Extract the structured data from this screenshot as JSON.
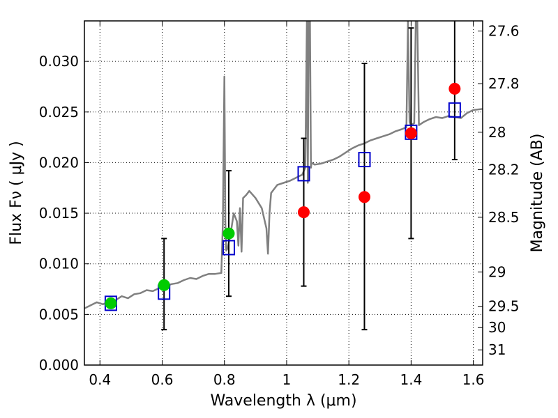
{
  "chart_data": {
    "type": "scatter",
    "xlabel": "Wavelength  λ (μm)",
    "ylabel": "Flux  Fν  ( μJy )",
    "y2label": "Magnitude (AB)",
    "xlim": [
      0.35,
      1.63
    ],
    "ylim": [
      0.0,
      0.034
    ],
    "grid": true,
    "x_ticks": [
      0.4,
      0.6,
      0.8,
      1.0,
      1.2,
      1.4,
      1.6
    ],
    "x_tick_labels": [
      "0.4",
      "0.6",
      "0.8",
      "1",
      "1.2",
      "1.4",
      "1.6"
    ],
    "y_ticks": [
      0.0,
      0.005,
      0.01,
      0.015,
      0.02,
      0.025,
      0.03
    ],
    "y_tick_labels": [
      "0.000",
      "0.005",
      "0.010",
      "0.015",
      "0.020",
      "0.025",
      "0.030"
    ],
    "mag_ticks": [
      {
        "label": "27.6",
        "flux": 0.033
      },
      {
        "label": "27.8",
        "flux": 0.0278
      },
      {
        "label": "28",
        "flux": 0.023
      },
      {
        "label": "28.2",
        "flux": 0.0193
      },
      {
        "label": "28.5",
        "flux": 0.0146
      },
      {
        "label": "29",
        "flux": 0.0092
      },
      {
        "label": "29.5",
        "flux": 0.0058
      },
      {
        "label": "30",
        "flux": 0.0037
      },
      {
        "label": "31",
        "flux": 0.0015
      }
    ],
    "colors": {
      "model": "#808080",
      "observed": "#ff0000",
      "observed_alt": "#00cc00",
      "synthetic": "#0000cc",
      "errorbar": "#000000",
      "grid": "#000000"
    },
    "series": [
      {
        "marker": "square-open",
        "color": "#0000cc",
        "x": [
          0.435,
          0.606,
          0.814,
          1.055,
          1.25,
          1.4,
          1.54
        ],
        "y": [
          0.0061,
          0.0072,
          0.0116,
          0.0189,
          0.0203,
          0.023,
          0.0252
        ]
      },
      {
        "marker": "circle",
        "color": "#00cc00",
        "x": [
          0.435,
          0.606,
          0.814
        ],
        "y": [
          0.0061,
          0.0079,
          0.013
        ]
      },
      {
        "marker": "circle",
        "color": "#ff0000",
        "x": [
          1.055,
          1.25,
          1.4,
          1.54
        ],
        "y": [
          0.0151,
          0.0166,
          0.0229,
          0.0273
        ]
      }
    ],
    "errorbars": [
      {
        "x": 0.606,
        "y": 0.0079,
        "ylow": 0.0035,
        "yhigh": 0.0125
      },
      {
        "x": 0.814,
        "y": 0.013,
        "ylow": 0.0068,
        "yhigh": 0.0192
      },
      {
        "x": 1.055,
        "y": 0.0151,
        "ylow": 0.0078,
        "yhigh": 0.0224
      },
      {
        "x": 1.25,
        "y": 0.0166,
        "ylow": 0.0035,
        "yhigh": 0.0298
      },
      {
        "x": 1.4,
        "y": 0.0229,
        "ylow": 0.0125,
        "yhigh": 0.0333
      },
      {
        "x": 1.54,
        "y": 0.0273,
        "ylow": 0.0203,
        "yhigh": 0.0345
      }
    ],
    "model_spectrum": {
      "x": [
        0.35,
        0.37,
        0.39,
        0.41,
        0.43,
        0.45,
        0.47,
        0.49,
        0.51,
        0.53,
        0.55,
        0.57,
        0.59,
        0.61,
        0.63,
        0.65,
        0.67,
        0.69,
        0.71,
        0.73,
        0.75,
        0.77,
        0.79,
        0.795,
        0.8,
        0.803,
        0.806,
        0.81,
        0.82,
        0.83,
        0.84,
        0.845,
        0.85,
        0.855,
        0.86,
        0.87,
        0.88,
        0.9,
        0.92,
        0.935,
        0.94,
        0.945,
        0.95,
        0.97,
        0.99,
        1.01,
        1.03,
        1.05,
        1.06,
        1.065,
        1.068,
        1.071,
        1.075,
        1.078,
        1.08,
        1.09,
        1.11,
        1.13,
        1.15,
        1.17,
        1.19,
        1.21,
        1.23,
        1.25,
        1.27,
        1.29,
        1.31,
        1.33,
        1.35,
        1.37,
        1.385,
        1.39,
        1.395,
        1.4,
        1.405,
        1.41,
        1.415,
        1.42,
        1.425,
        1.43,
        1.44,
        1.46,
        1.48,
        1.5,
        1.52,
        1.54,
        1.56,
        1.58,
        1.6,
        1.63
      ],
      "y": [
        0.0056,
        0.0059,
        0.0062,
        0.006,
        0.0063,
        0.0064,
        0.0068,
        0.0066,
        0.007,
        0.0071,
        0.0074,
        0.0073,
        0.0076,
        0.0078,
        0.008,
        0.0081,
        0.0084,
        0.0086,
        0.0085,
        0.0088,
        0.009,
        0.009,
        0.0091,
        0.014,
        0.0285,
        0.014,
        0.0113,
        0.0115,
        0.013,
        0.015,
        0.0142,
        0.0118,
        0.0155,
        0.0112,
        0.0165,
        0.0168,
        0.0172,
        0.0165,
        0.0155,
        0.0135,
        0.011,
        0.015,
        0.017,
        0.0178,
        0.018,
        0.0182,
        0.0185,
        0.0188,
        0.0195,
        0.034,
        0.018,
        0.034,
        0.034,
        0.0195,
        0.02,
        0.0198,
        0.0199,
        0.0201,
        0.0203,
        0.0206,
        0.021,
        0.0214,
        0.0217,
        0.0219,
        0.0222,
        0.0224,
        0.0226,
        0.0228,
        0.0231,
        0.0233,
        0.0235,
        0.034,
        0.024,
        0.0236,
        0.0238,
        0.0239,
        0.034,
        0.034,
        0.0237,
        0.0238,
        0.024,
        0.0243,
        0.0245,
        0.0244,
        0.0246,
        0.0245,
        0.0244,
        0.0249,
        0.0252,
        0.0253
      ]
    }
  }
}
